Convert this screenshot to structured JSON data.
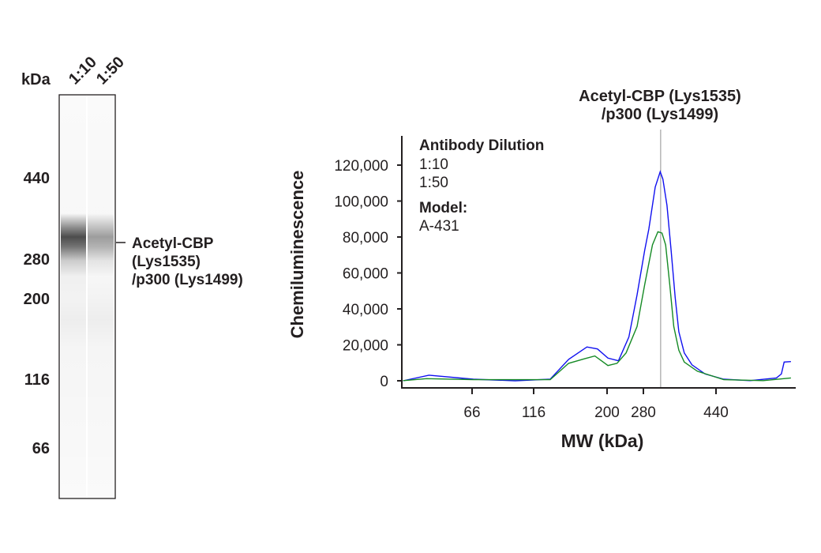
{
  "blot": {
    "unit_label": "kDa",
    "lanes": [
      "1:10",
      "1:50"
    ],
    "markers": [
      "440",
      "280",
      "200",
      "116",
      "66"
    ],
    "band_label_lines": [
      "Acetyl-CBP",
      "(Lys1535)",
      "/p300 (Lys1499)"
    ],
    "band_intensity": [
      1.0,
      0.55
    ]
  },
  "chart_data": {
    "type": "line",
    "title_lines": [
      "Acetyl-CBP (Lys1535)",
      "/p300 (Lys1499)"
    ],
    "xlabel": "MW (kDa)",
    "ylabel": "Chemiluminescence",
    "x_ticks": [
      66,
      116,
      200,
      280,
      440
    ],
    "x_tick_labels": [
      "66",
      "116",
      "200",
      "280",
      "440"
    ],
    "y_ticks": [
      0,
      20000,
      40000,
      60000,
      80000,
      100000,
      120000
    ],
    "y_tick_labels": [
      "0",
      "20,000",
      "40,000",
      "60,000",
      "80,000",
      "100,000",
      "120,000"
    ],
    "ylim": [
      0,
      125000
    ],
    "grid": false,
    "marker_mw": 318,
    "legend": {
      "heading": "Antibody Dilution",
      "model_heading": "Model:",
      "model_value": "A-431",
      "placement": "top-left"
    },
    "series": [
      {
        "name": "1:10",
        "color": "#1010f0",
        "label_color": "#3a4fa6",
        "x": [
          10,
          31,
          67,
          101,
          135,
          156,
          177,
          189,
          202,
          225,
          248,
          266,
          283,
          292,
          306,
          317,
          323,
          332,
          341,
          350,
          358,
          370,
          387,
          416,
          457,
          515,
          573,
          584,
          590,
          605
        ],
        "y": [
          0,
          3100,
          900,
          0,
          900,
          11900,
          18800,
          17700,
          12600,
          11100,
          24300,
          47800,
          72700,
          84400,
          107800,
          116300,
          112200,
          97600,
          72700,
          46300,
          27300,
          15500,
          8900,
          3800,
          900,
          100,
          1600,
          3800,
          10400,
          10700
        ]
      },
      {
        "name": "1:50",
        "color": "#158a25",
        "label_color": "#158a3a",
        "x": [
          10,
          29,
          67,
          135,
          156,
          174,
          186,
          202,
          222,
          242,
          266,
          283,
          300,
          312,
          321,
          329,
          338,
          347,
          358,
          370,
          399,
          457,
          544,
          605
        ],
        "y": [
          100,
          1200,
          600,
          600,
          9700,
          12200,
          13800,
          8500,
          9700,
          15500,
          30200,
          53600,
          75600,
          82900,
          82200,
          75600,
          53600,
          30200,
          17000,
          10400,
          5300,
          600,
          100,
          1600
        ]
      }
    ]
  }
}
